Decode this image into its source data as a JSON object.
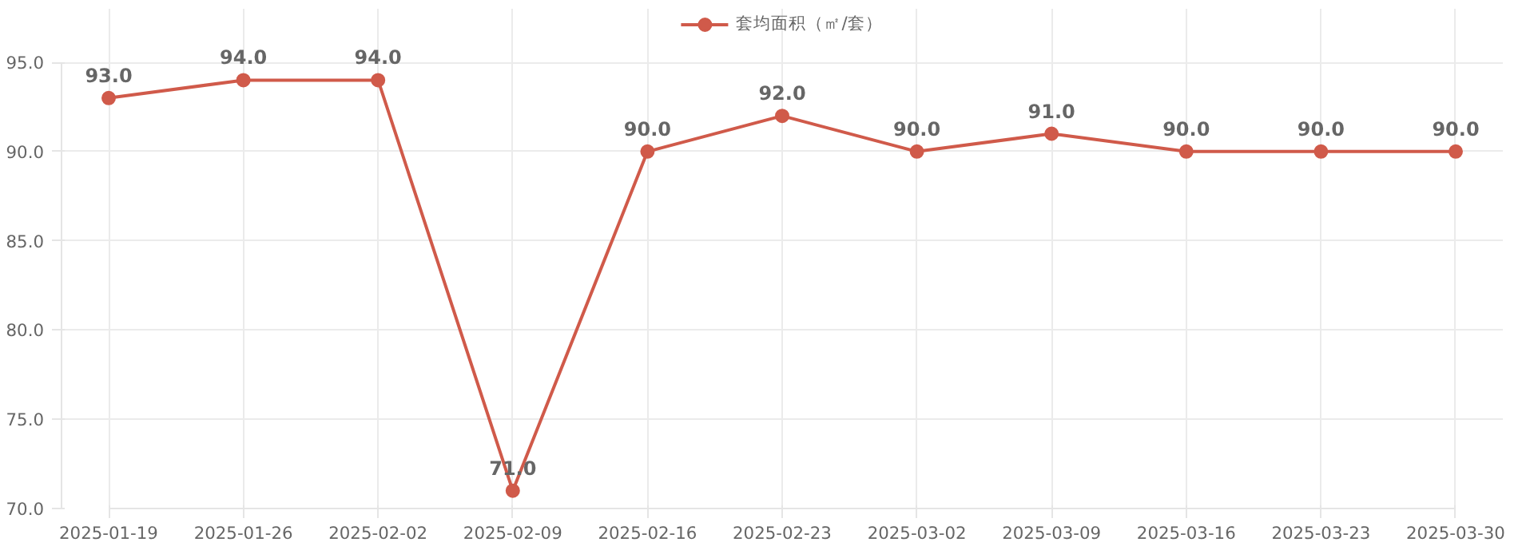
{
  "chart_data": {
    "type": "line",
    "categories": [
      "2025-01-19",
      "2025-01-26",
      "2025-02-02",
      "2025-02-09",
      "2025-02-16",
      "2025-02-23",
      "2025-03-02",
      "2025-03-09",
      "2025-03-16",
      "2025-03-23",
      "2025-03-30"
    ],
    "series": [
      {
        "name": "套均面积（㎡/套）",
        "color": "#d05a4a",
        "values": [
          93.0,
          94.0,
          94.0,
          71.0,
          90.0,
          92.0,
          90.0,
          91.0,
          90.0,
          90.0,
          90.0
        ],
        "value_labels": [
          "93.0",
          "94.0",
          "94.0",
          "71.0",
          "90.0",
          "92.0",
          "90.0",
          "91.0",
          "90.0",
          "90.0",
          "90.0"
        ]
      }
    ],
    "ylim": [
      70.0,
      95.0
    ],
    "yticks": [
      {
        "value": 70,
        "label": "70.0"
      },
      {
        "value": 75,
        "label": "75.0"
      },
      {
        "value": 80,
        "label": "80.0"
      },
      {
        "value": 85,
        "label": "85.0"
      },
      {
        "value": 90,
        "label": "90.0"
      },
      {
        "value": 95,
        "label": "95.0"
      }
    ],
    "grid": true,
    "legend": "top",
    "marker": "circle",
    "line_style": "solid"
  }
}
